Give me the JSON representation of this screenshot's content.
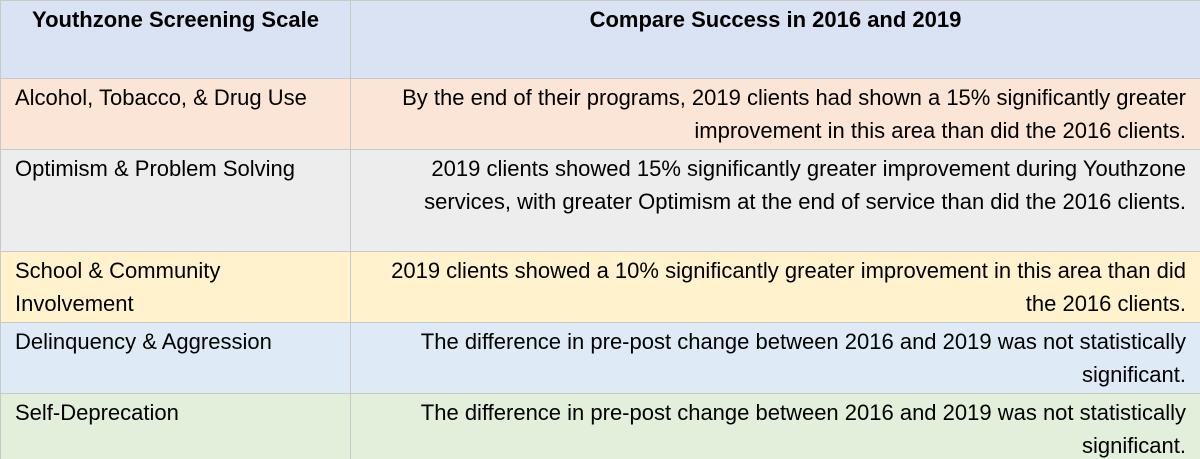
{
  "header": {
    "col1": "Youthzone Screening Scale",
    "col2": "Compare Success in 2016 and 2019"
  },
  "rows": [
    {
      "scale": "Alcohol, Tobacco, & Drug Use",
      "result": "By the end of their programs, 2019 clients had shown a 15% significantly greater improvement in this area than did the 2016 clients."
    },
    {
      "scale": "Optimism & Problem Solving",
      "result": "2019 clients showed 15% significantly greater improvement during Youthzone services, with greater Optimism at the end of service than did the 2016 clients."
    },
    {
      "scale": "School & Community Involvement",
      "result": "2019 clients showed a 10% significantly greater improvement in this area than did the 2016 clients."
    },
    {
      "scale": "Delinquency & Aggression",
      "result": "The difference in pre-post change between 2016 and 2019 was not statistically significant."
    },
    {
      "scale": "Self-Deprecation",
      "result": "The difference in pre-post change between 2016 and 2019 was not statistically significant."
    }
  ],
  "colors": {
    "header": "#dae3f3",
    "row1": "#fbe5d6",
    "row2": "#ededed",
    "row3": "#fff2cc",
    "row4": "#deebf7",
    "row5": "#e2efda"
  }
}
